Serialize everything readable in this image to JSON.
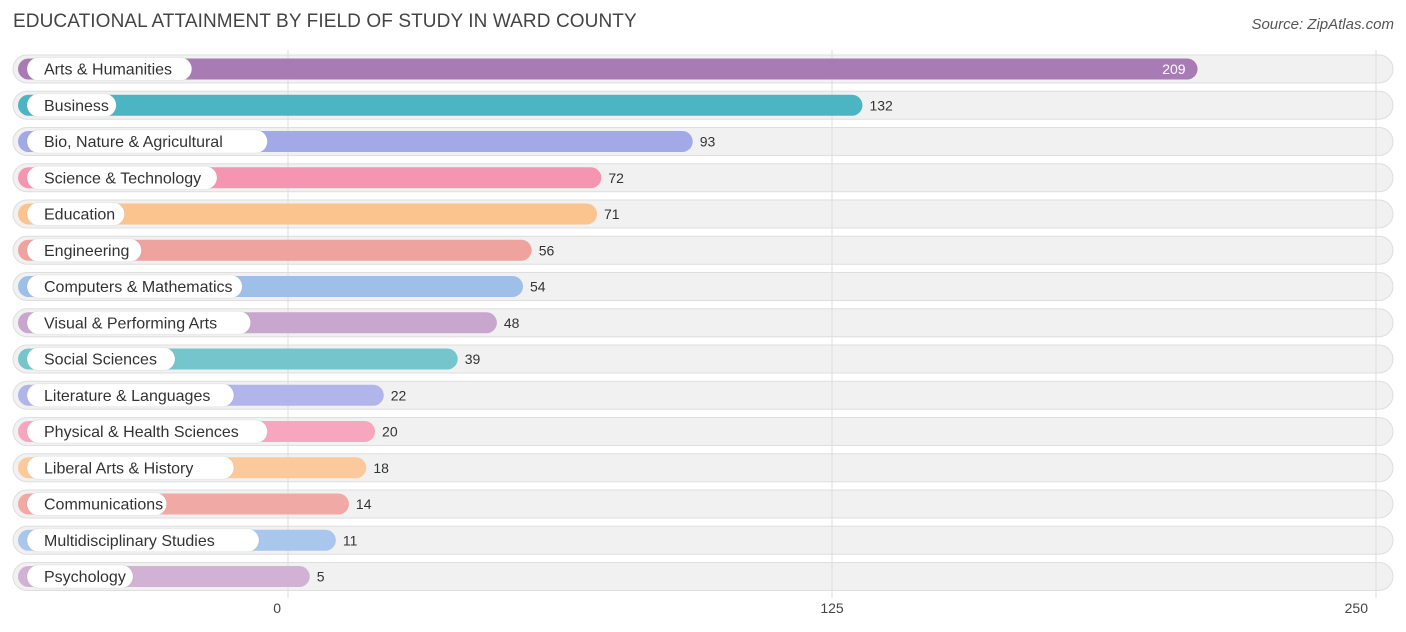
{
  "page": {
    "title": "EDUCATIONAL ATTAINMENT BY FIELD OF STUDY IN WARD COUNTY",
    "source": "Source: ZipAtlas.com"
  },
  "chart_data": {
    "type": "bar",
    "orientation": "horizontal",
    "title": "EDUCATIONAL ATTAINMENT BY FIELD OF STUDY IN WARD COUNTY",
    "xlabel": "",
    "ylabel": "",
    "xlim": [
      0,
      250
    ],
    "ticks": [
      0,
      125,
      250
    ],
    "grid": true,
    "categories": [
      "Arts & Humanities",
      "Business",
      "Bio, Nature & Agricultural",
      "Science & Technology",
      "Education",
      "Engineering",
      "Computers & Mathematics",
      "Visual & Performing Arts",
      "Social Sciences",
      "Literature & Languages",
      "Physical & Health Sciences",
      "Liberal Arts & History",
      "Communications",
      "Multidisciplinary Studies",
      "Psychology"
    ],
    "values": [
      209,
      132,
      93,
      72,
      71,
      56,
      54,
      48,
      39,
      22,
      20,
      18,
      14,
      11,
      5
    ],
    "colors": [
      "#a97bb5",
      "#4cb5c3",
      "#a1a9e6",
      "#f595b2",
      "#fbc48e",
      "#eea39f",
      "#9dbfe8",
      "#c9a6cd",
      "#75c6cc",
      "#b1b5ea",
      "#f8a6bf",
      "#fbc99c",
      "#f0a9a5",
      "#a9c7ec",
      "#d1b2d5"
    ]
  }
}
